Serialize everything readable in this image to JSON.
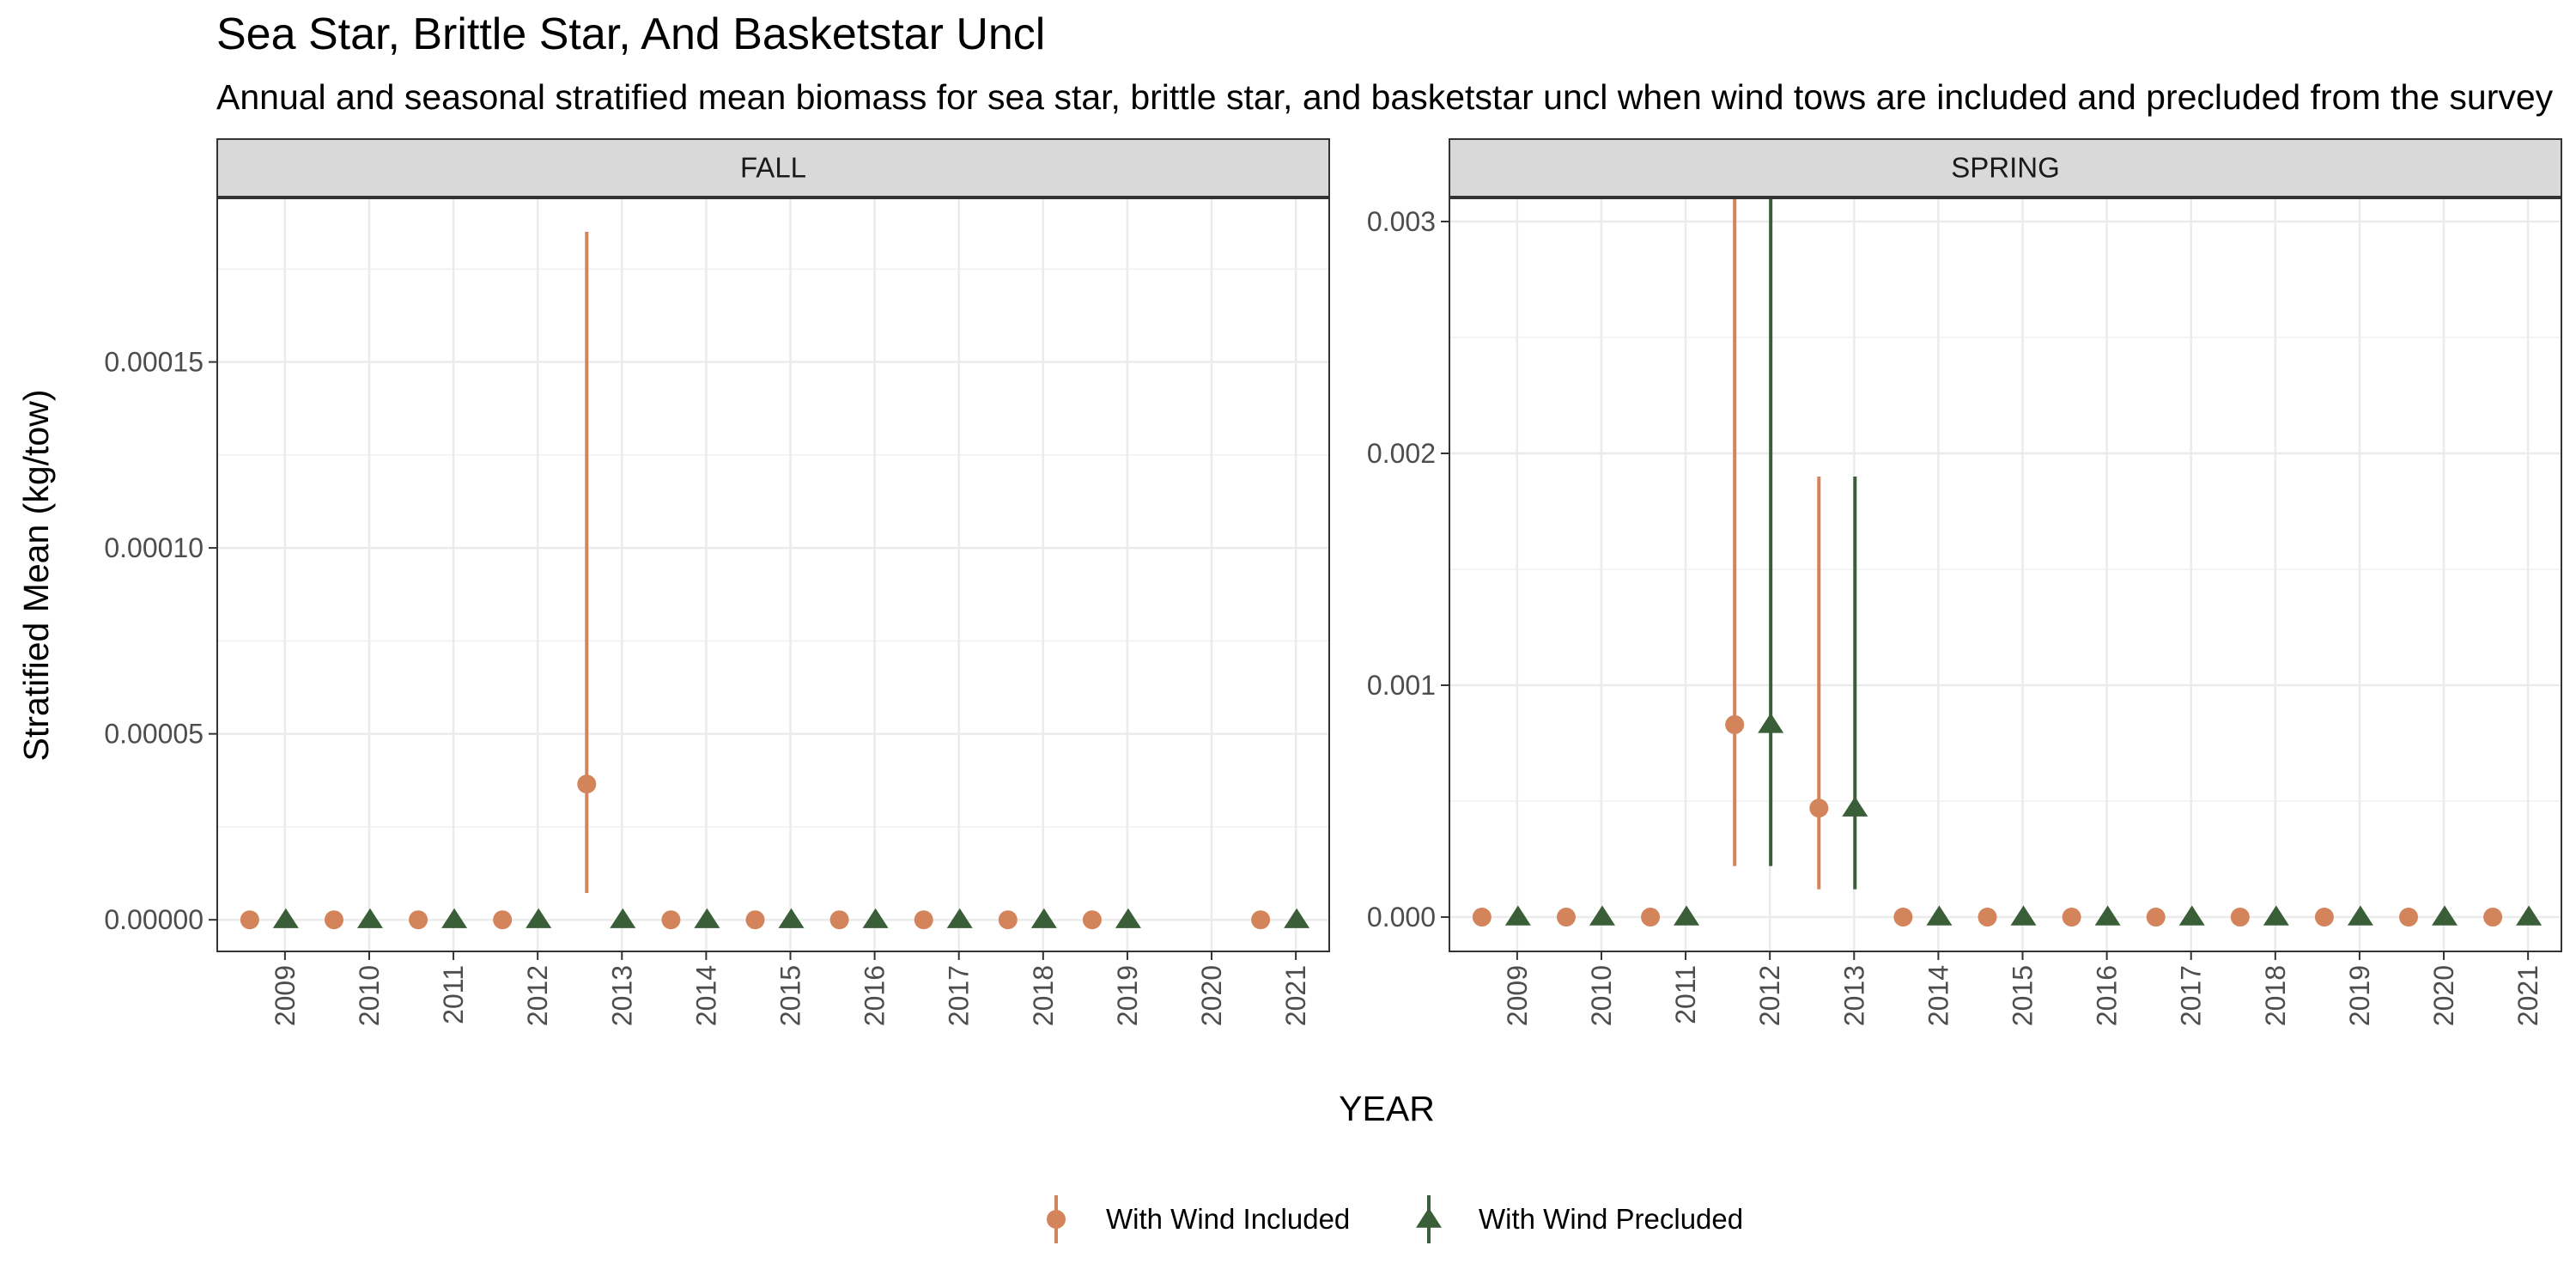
{
  "chart_data": {
    "type": "scatter",
    "title": "Sea Star, Brittle Star, And Basketstar Uncl",
    "subtitle": "Annual and seasonal stratified mean biomass for sea star, brittle star, and basketstar uncl when wind tows are included and precluded from the survey",
    "xlabel": "YEAR",
    "ylabel": "Stratified Mean (kg/tow)",
    "series_styles": [
      {
        "name": "With Wind Included",
        "color": "#D4845A",
        "shape": "circle"
      },
      {
        "name": "With Wind Precluded",
        "color": "#3A5F38",
        "shape": "triangle"
      }
    ],
    "legend_position": "bottom",
    "grid": true,
    "panels": [
      {
        "label": "FALL",
        "years": [
          "2009",
          "2010",
          "2011",
          "2012",
          "2013",
          "2014",
          "2015",
          "2016",
          "2017",
          "2018",
          "2019",
          "2020",
          "2021"
        ],
        "ylim": [
          -8.5e-06,
          0.000194
        ],
        "yticks": [
          0,
          5e-05,
          0.0001,
          0.00015
        ],
        "ytick_labels": [
          "0.00000",
          "0.00005",
          "0.00010",
          "0.00015"
        ],
        "series": [
          {
            "name": "With Wind Included",
            "points": [
              {
                "x": "2009",
                "y": 0
              },
              {
                "x": "2010",
                "y": 0
              },
              {
                "x": "2011",
                "y": 0
              },
              {
                "x": "2012",
                "y": 0
              },
              {
                "x": "2013",
                "y": 3.65e-05,
                "ymin": 7.2e-06,
                "ymax": 0.000185
              },
              {
                "x": "2014",
                "y": 0
              },
              {
                "x": "2015",
                "y": 0
              },
              {
                "x": "2016",
                "y": 0
              },
              {
                "x": "2017",
                "y": 0
              },
              {
                "x": "2018",
                "y": 0
              },
              {
                "x": "2019",
                "y": 0
              },
              {
                "x": "2021",
                "y": 0
              }
            ]
          },
          {
            "name": "With Wind Precluded",
            "points": [
              {
                "x": "2009",
                "y": 0
              },
              {
                "x": "2010",
                "y": 0
              },
              {
                "x": "2011",
                "y": 0
              },
              {
                "x": "2012",
                "y": 0
              },
              {
                "x": "2013",
                "y": 0
              },
              {
                "x": "2014",
                "y": 0
              },
              {
                "x": "2015",
                "y": 0
              },
              {
                "x": "2016",
                "y": 0
              },
              {
                "x": "2017",
                "y": 0
              },
              {
                "x": "2018",
                "y": 0
              },
              {
                "x": "2019",
                "y": 0
              },
              {
                "x": "2021",
                "y": 0
              }
            ]
          }
        ]
      },
      {
        "label": "SPRING",
        "years": [
          "2009",
          "2010",
          "2011",
          "2012",
          "2013",
          "2014",
          "2015",
          "2016",
          "2017",
          "2018",
          "2019",
          "2020",
          "2021"
        ],
        "ylim": [
          -0.000148,
          0.0031
        ],
        "yticks": [
          0,
          0.001,
          0.002,
          0.003
        ],
        "ytick_labels": [
          "0.000",
          "0.001",
          "0.002",
          "0.003"
        ],
        "series": [
          {
            "name": "With Wind Included",
            "points": [
              {
                "x": "2009",
                "y": 0
              },
              {
                "x": "2010",
                "y": 0
              },
              {
                "x": "2011",
                "y": 0
              },
              {
                "x": "2012",
                "y": 0.00083,
                "ymin": 0.00022,
                "ymax": 0.0031
              },
              {
                "x": "2013",
                "y": 0.00047,
                "ymin": 0.00012,
                "ymax": 0.0019
              },
              {
                "x": "2014",
                "y": 0
              },
              {
                "x": "2015",
                "y": 0
              },
              {
                "x": "2016",
                "y": 0
              },
              {
                "x": "2017",
                "y": 0
              },
              {
                "x": "2018",
                "y": 0
              },
              {
                "x": "2019",
                "y": 0
              },
              {
                "x": "2020",
                "y": 0
              },
              {
                "x": "2021",
                "y": 0
              }
            ]
          },
          {
            "name": "With Wind Precluded",
            "points": [
              {
                "x": "2009",
                "y": 0
              },
              {
                "x": "2010",
                "y": 0
              },
              {
                "x": "2011",
                "y": 0
              },
              {
                "x": "2012",
                "y": 0.00083,
                "ymin": 0.00022,
                "ymax": 0.0031
              },
              {
                "x": "2013",
                "y": 0.00047,
                "ymin": 0.00012,
                "ymax": 0.0019
              },
              {
                "x": "2014",
                "y": 0
              },
              {
                "x": "2015",
                "y": 0
              },
              {
                "x": "2016",
                "y": 0
              },
              {
                "x": "2017",
                "y": 0
              },
              {
                "x": "2018",
                "y": 0
              },
              {
                "x": "2019",
                "y": 0
              },
              {
                "x": "2020",
                "y": 0
              },
              {
                "x": "2021",
                "y": 0
              }
            ]
          }
        ]
      }
    ]
  }
}
